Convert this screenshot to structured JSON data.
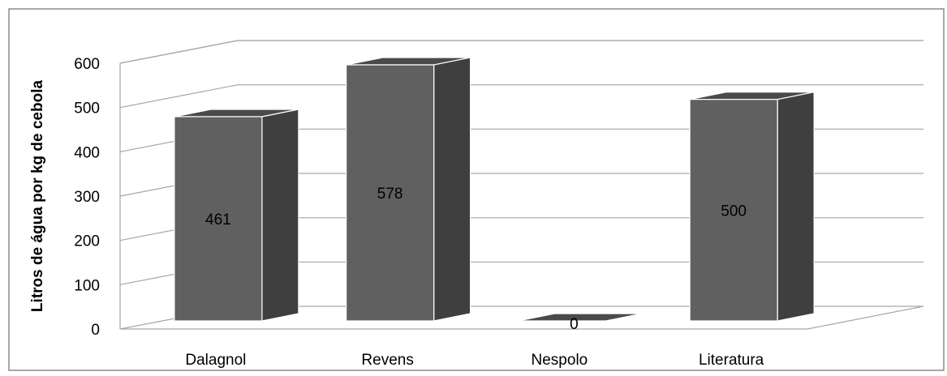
{
  "chart_data": {
    "type": "bar",
    "style": "3d-column",
    "title": "",
    "xlabel": "",
    "ylabel": "Litros de água por kg de cebola",
    "categories": [
      "Dalagnol",
      "Revens",
      "Nespolo",
      "Literatura"
    ],
    "values": [
      461,
      578,
      0,
      500
    ],
    "data_labels": [
      "461",
      "578",
      "0",
      "500"
    ],
    "yticks": [
      "0",
      "100",
      "200",
      "300",
      "400",
      "500",
      "600"
    ],
    "ylim": [
      0,
      600
    ],
    "grid": true,
    "legend": "none",
    "colors": {
      "bar_front": "#606060",
      "bar_side": "#3f3f3f",
      "bar_top": "#4a4a4a",
      "gridline": "#a6a6a6",
      "axis_text": "#000000"
    }
  }
}
